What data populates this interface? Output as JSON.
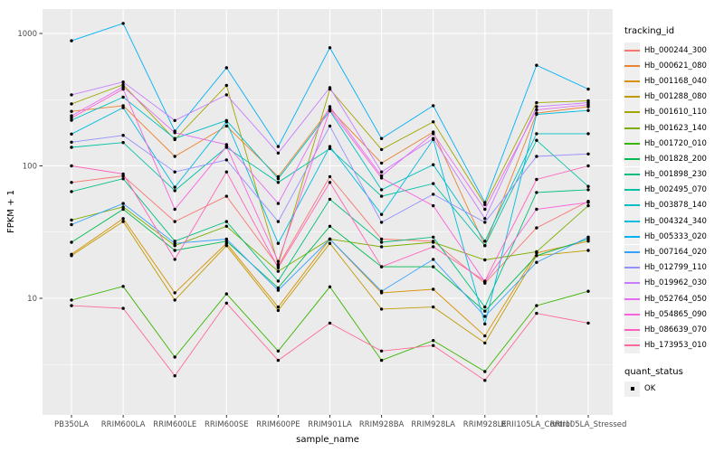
{
  "legend": {
    "tracking_title": "tracking_id",
    "quant_title": "quant_status",
    "quant_items": [
      "OK"
    ]
  },
  "colors": {
    "panel_background": "#ebebeb",
    "gridline": "#ffffff",
    "tick_label": "#4d4d4d",
    "axis_tick": "#333333",
    "point": "#000000",
    "legend_key_background": "#efefef"
  },
  "chart_data": {
    "type": "line",
    "title": "",
    "xlabel": "sample_name",
    "ylabel": "FPKM + 1",
    "y_scale": "log10",
    "ylim": [
      1.3,
      1530
    ],
    "y_ticks": [
      10,
      100,
      1000
    ],
    "y_tick_labels": [
      "10",
      "100",
      "1000"
    ],
    "y_minor_ticks": [
      3.162,
      31.62,
      316.2
    ],
    "grid": true,
    "legend_position": "right",
    "point_shape": "filled-circle",
    "x_categories": [
      "PB350LA",
      "RRIM600LA",
      "RRIM600LE",
      "RRIM600SE",
      "RRIM600PE",
      "RRIM901LA",
      "RRIM928BA",
      "RRIM928LA",
      "RRIM928LE",
      "RRII105LA_Control",
      "RRII105LA_Stressed"
    ],
    "series": [
      {
        "name": "Hb_000244_300",
        "color": "#F8766D",
        "values": [
          75,
          84,
          38,
          59,
          17.5,
          83,
          28,
          27,
          13,
          34,
          54
        ]
      },
      {
        "name": "Hb_000621_080",
        "color": "#EA8331",
        "values": [
          258,
          285,
          118,
          200,
          83,
          270,
          105,
          180,
          25,
          250,
          280
        ]
      },
      {
        "name": "Hb_001168_040",
        "color": "#D89000",
        "values": [
          21.5,
          40,
          11,
          26,
          8.6,
          28,
          11,
          11.7,
          5.2,
          22,
          27
        ]
      },
      {
        "name": "Hb_001288_080",
        "color": "#C09B00",
        "values": [
          21,
          38,
          9.7,
          25,
          8.1,
          26,
          8.3,
          8.6,
          4.6,
          21,
          23
        ]
      },
      {
        "name": "Hb_001610_110",
        "color": "#A3A500",
        "values": [
          294,
          410,
          158,
          405,
          18,
          380,
          133,
          215,
          51,
          300,
          310
        ]
      },
      {
        "name": "Hb_001623_140",
        "color": "#7CAE00",
        "values": [
          39,
          49,
          25,
          35,
          16,
          28,
          24.5,
          26.5,
          19.5,
          22.5,
          50
        ]
      },
      {
        "name": "Hb_001720_010",
        "color": "#39B600",
        "values": [
          9.7,
          12.3,
          3.6,
          10.8,
          4.0,
          12.2,
          3.4,
          4.8,
          2.8,
          8.8,
          11.3
        ]
      },
      {
        "name": "Hb_001828_200",
        "color": "#00BB4E",
        "values": [
          26.5,
          47,
          23,
          27,
          12,
          35,
          17.3,
          17.3,
          8.0,
          21,
          28
        ]
      },
      {
        "name": "Hb_001898_230",
        "color": "#00BF7D",
        "values": [
          64,
          80,
          27,
          38,
          13.5,
          56,
          26.5,
          29,
          8.6,
          63,
          66
        ]
      },
      {
        "name": "Hb_002495_070",
        "color": "#00C1A3",
        "values": [
          138,
          150,
          65,
          138,
          75,
          135,
          59,
          73.5,
          25,
          156,
          70
        ]
      },
      {
        "name": "Hb_003878_140",
        "color": "#00BFC4",
        "values": [
          221,
          330,
          161,
          220,
          80,
          260,
          66,
          102,
          27,
          175,
          175
        ]
      },
      {
        "name": "Hb_004324_340",
        "color": "#00BAE0",
        "values": [
          174,
          275,
          69,
          215,
          26,
          140,
          43,
          158,
          6.4,
          245,
          262
        ]
      },
      {
        "name": "Hb_005333_020",
        "color": "#00B0F6",
        "values": [
          880,
          1190,
          183,
          550,
          140,
          780,
          161,
          285,
          53,
          575,
          380
        ]
      },
      {
        "name": "Hb_007164_020",
        "color": "#35A2FF",
        "values": [
          36,
          52,
          26,
          28,
          11.5,
          28,
          11.3,
          19.7,
          7.3,
          18.7,
          29
        ]
      },
      {
        "name": "Hb_012799_110",
        "color": "#9590FF",
        "values": [
          151,
          170,
          90,
          111,
          38,
          200,
          37.5,
          61,
          37.5,
          118,
          123
        ]
      },
      {
        "name": "Hb_019962_030",
        "color": "#C77CFF",
        "values": [
          344,
          430,
          220,
          344,
          125,
          390,
          90,
          161,
          40,
          280,
          300
        ]
      },
      {
        "name": "Hb_052764_050",
        "color": "#E76BF3",
        "values": [
          239,
          395,
          178,
          145,
          52,
          280,
          84,
          175,
          47,
          265,
          290
        ]
      },
      {
        "name": "Hb_054865_090",
        "color": "#FA62DB",
        "values": [
          230,
          380,
          47,
          140,
          19,
          265,
          81,
          50,
          13.3,
          47,
          53
        ]
      },
      {
        "name": "Hb_086639_070",
        "color": "#FF62BC",
        "values": [
          100,
          87,
          19.7,
          90,
          17,
          75,
          17.3,
          24.5,
          13.5,
          79,
          100
        ]
      },
      {
        "name": "Hb_173953_010",
        "color": "#FF6A98",
        "values": [
          8.8,
          8.4,
          2.6,
          9.2,
          3.4,
          6.5,
          4.0,
          4.4,
          2.4,
          7.7,
          6.5
        ]
      }
    ]
  }
}
